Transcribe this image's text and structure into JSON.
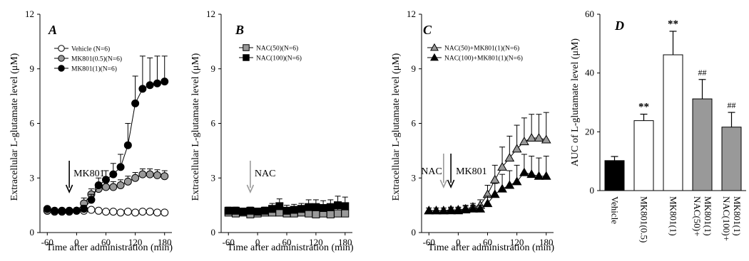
{
  "colors": {
    "white": "#ffffff",
    "gray": "#999999",
    "black": "#000000",
    "dark_gray": "#6e6e6e",
    "arrow_gray": "#9a9a9a"
  },
  "chart_data": [
    {
      "type": "line",
      "panel": "A",
      "xlabel": "Time after administration (min)",
      "ylabel": "Extracellular L-glutamate level (μM)",
      "xlim": [
        -75,
        195
      ],
      "ylim": [
        0,
        12
      ],
      "xticks": [
        -60,
        0,
        60,
        120,
        180
      ],
      "xtick_labels": [
        "-60",
        "0",
        "60",
        "120",
        "180"
      ],
      "yticks": [
        0,
        3,
        6,
        9,
        12
      ],
      "ytick_labels": [
        "0",
        "3",
        "6",
        "9",
        "12"
      ],
      "grid": false,
      "legend_position": "top-left",
      "x": [
        -60,
        -45,
        -30,
        -15,
        0,
        15,
        30,
        45,
        60,
        75,
        90,
        105,
        120,
        135,
        150,
        165,
        180
      ],
      "series": [
        {
          "name": "Vehicle (N=6)",
          "marker": "circle",
          "fill": "white",
          "values": [
            1.2,
            1.15,
            1.15,
            1.15,
            1.2,
            1.2,
            1.25,
            1.2,
            1.15,
            1.15,
            1.1,
            1.15,
            1.1,
            1.15,
            1.15,
            1.1,
            1.1
          ],
          "errors": [
            0.1,
            0.1,
            0.1,
            0.1,
            0.1,
            0.1,
            0.1,
            0.1,
            0.1,
            0.1,
            0.1,
            0.1,
            0.1,
            0.1,
            0.1,
            0.1,
            0.1
          ]
        },
        {
          "name": "MK801(0.5)(N=6)",
          "marker": "circle",
          "fill": "gray",
          "values": [
            1.2,
            1.15,
            1.15,
            1.15,
            1.2,
            1.6,
            2.1,
            2.4,
            2.5,
            2.5,
            2.6,
            2.8,
            3.0,
            3.2,
            3.2,
            3.15,
            3.1
          ],
          "errors": [
            0.1,
            0.1,
            0.1,
            0.1,
            0.1,
            0.3,
            0.3,
            0.3,
            0.3,
            0.3,
            0.3,
            0.3,
            0.3,
            0.3,
            0.3,
            0.3,
            0.3
          ]
        },
        {
          "name": "MK801(1)(N=6)",
          "marker": "circle",
          "fill": "black",
          "values": [
            1.3,
            1.2,
            1.2,
            1.2,
            1.2,
            1.3,
            1.8,
            2.6,
            2.9,
            3.2,
            3.6,
            4.8,
            7.1,
            7.9,
            8.1,
            8.2,
            8.3
          ],
          "errors": [
            0.1,
            0.1,
            0.1,
            0.1,
            0.1,
            0.2,
            0.3,
            0.4,
            0.5,
            0.6,
            0.7,
            1.2,
            1.5,
            1.8,
            1.5,
            1.5,
            1.4
          ]
        }
      ],
      "annotation": {
        "text": "MK801",
        "x": -15,
        "arrow_color": "black"
      }
    },
    {
      "type": "line",
      "panel": "B",
      "xlabel": "Time after administration (min)",
      "ylabel": "Extracellular L-glutamate level (μM)",
      "xlim": [
        -75,
        195
      ],
      "ylim": [
        0,
        12
      ],
      "xticks": [
        -60,
        0,
        60,
        120,
        180
      ],
      "xtick_labels": [
        "-60",
        "0",
        "60",
        "120",
        "180"
      ],
      "yticks": [
        0,
        3,
        6,
        9,
        12
      ],
      "ytick_labels": [
        "0",
        "3",
        "6",
        "9",
        "12"
      ],
      "grid": false,
      "legend_position": "top-left",
      "x": [
        -60,
        -45,
        -30,
        -15,
        0,
        15,
        30,
        45,
        60,
        75,
        90,
        105,
        120,
        135,
        150,
        165,
        180
      ],
      "series": [
        {
          "name": "NAC(50)(N=6)",
          "marker": "square",
          "fill": "gray",
          "values": [
            1.1,
            1.05,
            1.1,
            1.0,
            1.05,
            1.1,
            1.1,
            1.1,
            1.05,
            1.05,
            1.1,
            1.05,
            1.0,
            1.05,
            1.0,
            1.05,
            1.05
          ],
          "errors": [
            0.2,
            0.2,
            0.2,
            0.2,
            0.2,
            0.2,
            0.2,
            0.2,
            0.2,
            0.2,
            0.2,
            0.3,
            0.3,
            0.3,
            0.3,
            0.3,
            0.3
          ]
        },
        {
          "name": "NAC(100)(N=6)",
          "marker": "square",
          "fill": "black",
          "values": [
            1.2,
            1.2,
            1.15,
            1.2,
            1.15,
            1.2,
            1.3,
            1.45,
            1.2,
            1.25,
            1.3,
            1.4,
            1.4,
            1.35,
            1.4,
            1.5,
            1.45
          ],
          "errors": [
            0.2,
            0.2,
            0.2,
            0.2,
            0.2,
            0.2,
            0.3,
            0.4,
            0.3,
            0.3,
            0.3,
            0.4,
            0.4,
            0.4,
            0.4,
            0.5,
            0.5
          ]
        }
      ],
      "annotation": {
        "text": "NAC",
        "x": -15,
        "arrow_color": "gray"
      }
    },
    {
      "type": "line",
      "panel": "C",
      "xlabel": "Time after administration (min)",
      "ylabel": "Extracellular L-glutamate level (μM)",
      "xlim": [
        -75,
        195
      ],
      "ylim": [
        0,
        12
      ],
      "xticks": [
        -60,
        0,
        60,
        120,
        180
      ],
      "xtick_labels": [
        "-60",
        "0",
        "60",
        "120",
        "180"
      ],
      "yticks": [
        0,
        3,
        6,
        9,
        12
      ],
      "ytick_labels": [
        "0",
        "3",
        "6",
        "9",
        "12"
      ],
      "grid": false,
      "legend_position": "top-left",
      "x": [
        -60,
        -45,
        -30,
        -15,
        0,
        15,
        30,
        45,
        60,
        75,
        90,
        105,
        120,
        135,
        150,
        165,
        180
      ],
      "series": [
        {
          "name": "NAC(50)+MK801(1)(N=6)",
          "marker": "triangle",
          "fill": "gray",
          "values": [
            1.2,
            1.2,
            1.2,
            1.25,
            1.25,
            1.3,
            1.4,
            1.5,
            2.1,
            2.9,
            3.6,
            4.1,
            4.6,
            5.0,
            5.2,
            5.2,
            5.1
          ],
          "errors": [
            0.15,
            0.15,
            0.15,
            0.15,
            0.15,
            0.2,
            0.2,
            0.3,
            0.5,
            0.8,
            1.1,
            1.2,
            1.3,
            1.3,
            1.3,
            1.3,
            1.5
          ]
        },
        {
          "name": "NAC(100)+MK801(1)(N=6)",
          "marker": "triangle",
          "fill": "black",
          "values": [
            1.2,
            1.2,
            1.2,
            1.2,
            1.2,
            1.25,
            1.3,
            1.3,
            1.6,
            2.1,
            2.4,
            2.6,
            2.8,
            3.3,
            3.2,
            3.1,
            3.1
          ],
          "errors": [
            0.15,
            0.15,
            0.15,
            0.15,
            0.15,
            0.2,
            0.2,
            0.2,
            0.4,
            0.6,
            0.8,
            0.8,
            0.9,
            1.0,
            1.0,
            1.0,
            1.1
          ]
        }
      ],
      "annotation": {
        "text_left": "NAC",
        "text_right": "MK801",
        "x_left": -30,
        "x_right": -15
      }
    },
    {
      "type": "bar",
      "panel": "D",
      "ylabel": "AUC of L-glutamate level (μM)",
      "ylim": [
        0,
        60
      ],
      "yticks": [
        0,
        20,
        40,
        60
      ],
      "ytick_labels": [
        "0",
        "20",
        "40",
        "60"
      ],
      "grid": false,
      "categories": [
        "Vehicle",
        "MK801(0.5)",
        "MK801(1)",
        "NAC(50)+ MK801(1)",
        "NAC(100)+ MK801(1)"
      ],
      "category_lines": [
        [
          "Vehicle"
        ],
        [
          "MK801(0.5)"
        ],
        [
          "MK801(1)"
        ],
        [
          "NAC(50)+",
          "MK801(1)"
        ],
        [
          "NAC(100)+",
          "MK801(1)"
        ]
      ],
      "values": [
        10.2,
        23.8,
        46.2,
        31.2,
        21.6
      ],
      "errors": [
        1.4,
        2.2,
        8.0,
        6.6,
        5.0
      ],
      "fills": [
        "black",
        "white",
        "white",
        "gray",
        "gray"
      ],
      "significance": [
        "",
        "**",
        "**",
        "##",
        "##"
      ]
    }
  ]
}
